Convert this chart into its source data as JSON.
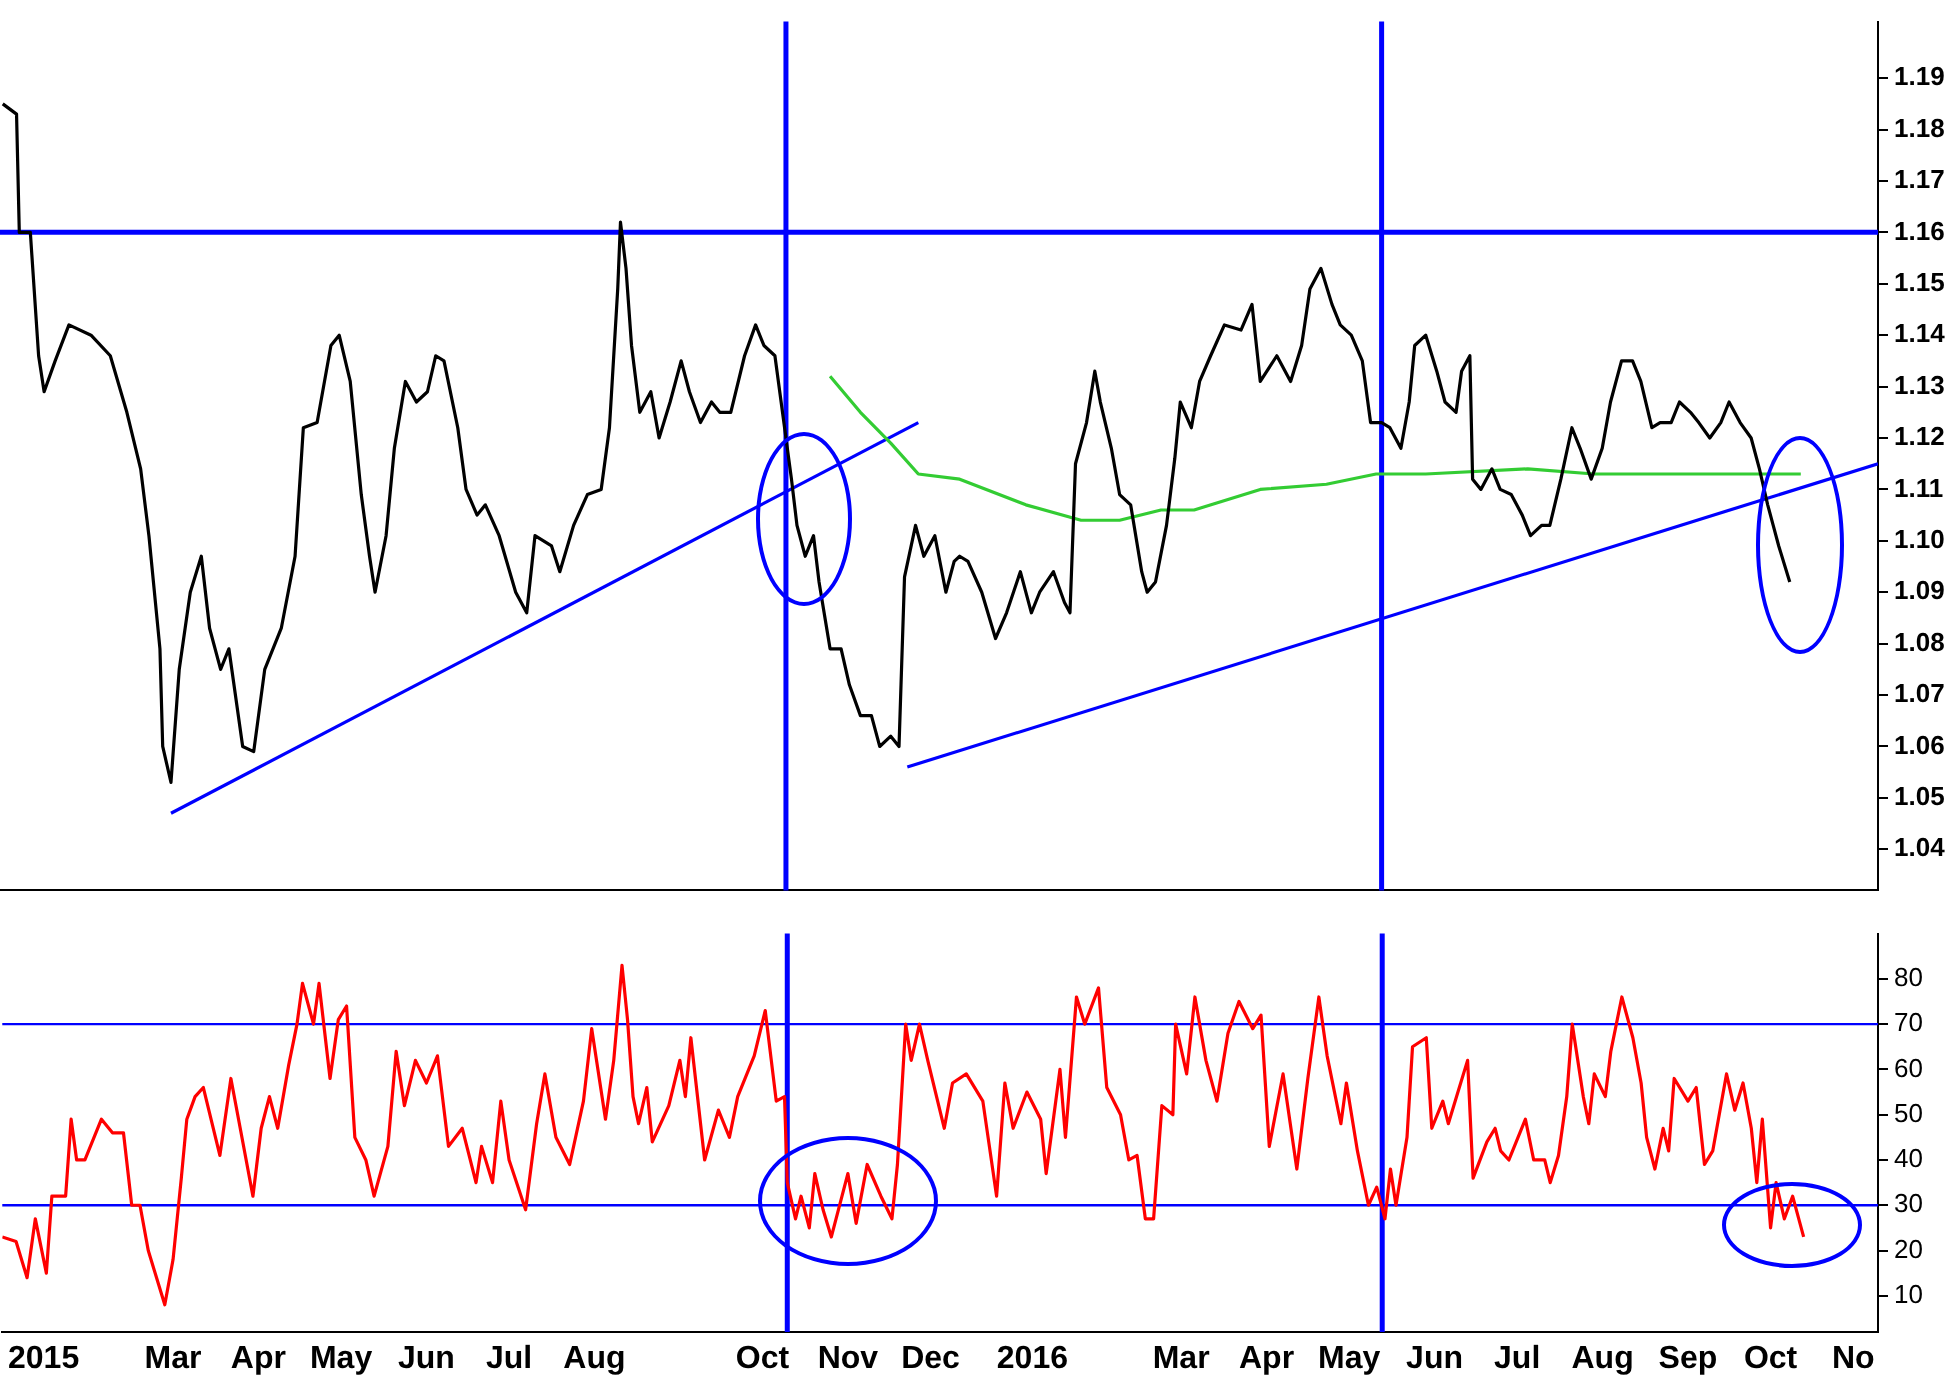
{
  "chart_data": [
    {
      "type": "line",
      "xlim": [
        "2015-01-09",
        "2016-11-20"
      ],
      "ylim": [
        1.032,
        1.201
      ],
      "yticks": [
        1.04,
        1.05,
        1.06,
        1.07,
        1.08,
        1.09,
        {
          "value": 1.1,
          "label": "1.10"
        },
        1.11,
        1.12,
        1.13,
        1.14,
        1.15,
        1.16,
        1.17,
        1.18,
        1.19
      ],
      "tick_labels": "y",
      "series": [
        {
          "color": "#000000",
          "x": [
            "2015-01-10",
            "2015-01-15",
            "2015-01-16",
            "2015-01-20",
            "2015-01-23",
            "2015-01-25",
            "2015-01-29",
            "2015-02-03",
            "2015-02-11",
            "2015-02-18",
            "2015-02-24",
            "2015-03-01",
            "2015-03-04",
            "2015-03-08",
            "2015-03-09",
            "2015-03-12",
            "2015-03-15",
            "2015-03-19",
            "2015-03-23",
            "2015-03-26",
            "2015-03-30",
            "2015-04-02",
            "2015-04-07",
            "2015-04-11",
            "2015-04-15",
            "2015-04-21",
            "2015-04-26",
            "2015-04-29",
            "2015-05-04",
            "2015-05-09",
            "2015-05-12",
            "2015-05-16",
            "2015-05-20",
            "2015-05-23",
            "2015-05-25",
            "2015-05-29",
            "2015-06-01",
            "2015-06-05",
            "2015-06-09",
            "2015-06-13",
            "2015-06-16",
            "2015-06-19",
            "2015-06-24",
            "2015-06-27",
            "2015-07-01",
            "2015-07-04",
            "2015-07-09",
            "2015-07-15",
            "2015-07-19",
            "2015-07-22",
            "2015-07-28",
            "2015-07-31",
            "2015-08-05",
            "2015-08-10",
            "2015-08-15",
            "2015-08-18",
            "2015-08-21",
            "2015-08-22",
            "2015-08-24",
            "2015-08-26",
            "2015-08-29",
            "2015-09-02",
            "2015-09-05",
            "2015-09-09",
            "2015-09-13",
            "2015-09-16",
            "2015-09-20",
            "2015-09-24",
            "2015-09-27",
            "2015-10-01",
            "2015-10-06",
            "2015-10-10",
            "2015-10-13",
            "2015-10-17",
            "2015-10-23",
            "2015-10-25",
            "2015-10-28",
            "2015-10-31",
            "2015-11-02",
            "2015-11-06",
            "2015-11-10",
            "2015-11-13",
            "2015-11-17",
            "2015-11-21",
            "2015-11-24",
            "2015-11-28",
            "2015-12-01",
            "2015-12-03",
            "2015-12-07",
            "2015-12-10",
            "2015-12-14",
            "2015-12-18",
            "2015-12-21",
            "2015-12-23",
            "2015-12-26",
            "2015-12-31",
            "2016-01-05",
            "2016-01-09",
            "2016-01-14",
            "2016-01-18",
            "2016-01-21",
            "2016-01-26",
            "2016-01-30",
            "2016-02-01",
            "2016-02-03",
            "2016-02-07",
            "2016-02-10",
            "2016-02-12",
            "2016-02-16",
            "2016-02-19",
            "2016-02-23",
            "2016-02-27",
            "2016-02-29",
            "2016-03-03",
            "2016-03-07",
            "2016-03-10",
            "2016-03-12",
            "2016-03-16",
            "2016-03-19",
            "2016-03-23",
            "2016-03-28",
            "2016-04-03",
            "2016-04-07",
            "2016-04-10",
            "2016-04-16",
            "2016-04-21",
            "2016-04-25",
            "2016-04-28",
            "2016-05-02",
            "2016-05-06",
            "2016-05-09",
            "2016-05-13",
            "2016-05-17",
            "2016-05-20",
            "2016-05-24",
            "2016-05-27",
            "2016-05-31",
            "2016-06-03",
            "2016-06-05",
            "2016-06-09",
            "2016-06-13",
            "2016-06-16",
            "2016-06-20",
            "2016-06-22",
            "2016-06-25",
            "2016-06-26",
            "2016-06-29",
            "2016-07-03",
            "2016-07-06",
            "2016-07-10",
            "2016-07-14",
            "2016-07-17",
            "2016-07-21",
            "2016-07-24",
            "2016-07-28",
            "2016-08-01",
            "2016-08-04",
            "2016-08-08",
            "2016-08-12",
            "2016-08-15",
            "2016-08-19",
            "2016-08-23",
            "2016-08-26",
            "2016-08-30",
            "2016-09-02",
            "2016-09-06",
            "2016-09-09",
            "2016-09-13",
            "2016-09-16",
            "2016-09-20",
            "2016-09-24",
            "2016-09-27",
            "2016-10-01",
            "2016-10-05",
            "2016-10-08",
            "2016-10-11",
            "2016-10-13",
            "2016-10-15",
            "2016-10-19"
          ],
          "values": [
            1.185,
            1.183,
            1.16,
            1.16,
            1.136,
            1.129,
            1.135,
            1.142,
            1.14,
            1.136,
            1.125,
            1.114,
            1.101,
            1.079,
            1.06,
            1.053,
            1.075,
            1.09,
            1.097,
            1.083,
            1.075,
            1.079,
            1.06,
            1.059,
            1.075,
            1.083,
            1.097,
            1.122,
            1.123,
            1.138,
            1.14,
            1.131,
            1.109,
            1.097,
            1.09,
            1.101,
            1.118,
            1.131,
            1.127,
            1.129,
            1.136,
            1.135,
            1.122,
            1.11,
            1.105,
            1.107,
            1.101,
            1.09,
            1.086,
            1.101,
            1.099,
            1.094,
            1.103,
            1.109,
            1.11,
            1.122,
            1.149,
            1.162,
            1.153,
            1.138,
            1.125,
            1.129,
            1.12,
            1.127,
            1.135,
            1.129,
            1.123,
            1.127,
            1.125,
            1.125,
            1.136,
            1.142,
            1.138,
            1.136,
            1.112,
            1.103,
            1.097,
            1.101,
            1.092,
            1.079,
            1.079,
            1.072,
            1.066,
            1.066,
            1.06,
            1.062,
            1.06,
            1.093,
            1.103,
            1.097,
            1.101,
            1.09,
            1.096,
            1.097,
            1.096,
            1.09,
            1.081,
            1.086,
            1.094,
            1.086,
            1.09,
            1.094,
            1.088,
            1.086,
            1.115,
            1.123,
            1.133,
            1.127,
            1.118,
            1.109,
            1.107,
            1.094,
            1.09,
            1.092,
            1.103,
            1.116,
            1.127,
            1.122,
            1.131,
            1.136,
            1.142,
            1.141,
            1.146,
            1.131,
            1.136,
            1.131,
            1.138,
            1.149,
            1.153,
            1.146,
            1.142,
            1.14,
            1.135,
            1.123,
            1.123,
            1.122,
            1.118,
            1.127,
            1.138,
            1.14,
            1.133,
            1.127,
            1.125,
            1.133,
            1.136,
            1.112,
            1.11,
            1.114,
            1.11,
            1.109,
            1.105,
            1.101,
            1.103,
            1.103,
            1.112,
            1.122,
            1.118,
            1.112,
            1.118,
            1.127,
            1.135,
            1.135,
            1.131,
            1.122,
            1.123,
            1.123,
            1.127,
            1.125,
            1.123,
            1.12,
            1.123,
            1.127,
            1.123,
            1.12,
            1.114,
            1.107,
            1.103,
            1.099,
            1.092
          ]
        },
        {
          "color": "#33cc33",
          "x": [
            "2015-11-06",
            "2015-11-17",
            "2015-11-28",
            "2015-12-08",
            "2015-12-23",
            "2016-01-16",
            "2016-02-05",
            "2016-02-19",
            "2016-03-05",
            "2016-03-17",
            "2016-04-10",
            "2016-05-04",
            "2016-05-22",
            "2016-06-09",
            "2016-07-16",
            "2016-08-09",
            "2016-09-02",
            "2016-10-08",
            "2016-10-23"
          ],
          "values": [
            1.132,
            1.125,
            1.119,
            1.113,
            1.112,
            1.107,
            1.104,
            1.104,
            1.106,
            1.106,
            1.11,
            1.111,
            1.113,
            1.113,
            1.114,
            1.113,
            1.113,
            1.113,
            1.113
          ]
        },
        {
          "color": "#0000ff",
          "x": [
            "2015-03-12",
            "2015-12-08"
          ],
          "values": [
            1.047,
            1.123
          ]
        },
        {
          "color": "#0000ff",
          "x": [
            "2015-12-04",
            "2016-11-20"
          ],
          "values": [
            1.056,
            1.115
          ]
        }
      ],
      "ref_lines": [
        {
          "axis": "y",
          "value": 1.16,
          "color": "#0000ff"
        },
        {
          "axis": "x",
          "value": "2015-10-21",
          "color": "#0000ff"
        },
        {
          "axis": "x",
          "value": "2016-05-24",
          "color": "#0000ff"
        }
      ]
    },
    {
      "type": "line",
      "xlim": [
        "2015-01-09",
        "2016-11-20"
      ],
      "ylim": [
        2,
        90
      ],
      "xticks": [
        {
          "value": "2015-01-24",
          "label": "2015"
        },
        {
          "value": "2015-03-12",
          "label": "Mar"
        },
        {
          "value": "2015-04-12",
          "label": "Apr"
        },
        {
          "value": "2015-05-12",
          "label": "May"
        },
        {
          "value": "2015-06-12",
          "label": "Jun"
        },
        {
          "value": "2015-07-12",
          "label": "Jul"
        },
        {
          "value": "2015-08-12",
          "label": "Aug"
        },
        {
          "value": "2015-10-12",
          "label": "Oct"
        },
        {
          "value": "2015-11-12",
          "label": "Nov"
        },
        {
          "value": "2015-12-12",
          "label": "Dec"
        },
        {
          "value": "2016-01-18",
          "label": "2016"
        },
        {
          "value": "2016-03-12",
          "label": "Mar"
        },
        {
          "value": "2016-04-12",
          "label": "Apr"
        },
        {
          "value": "2016-05-12",
          "label": "May"
        },
        {
          "value": "2016-06-12",
          "label": "Jun"
        },
        {
          "value": "2016-07-12",
          "label": "Jul"
        },
        {
          "value": "2016-08-12",
          "label": "Aug"
        },
        {
          "value": "2016-09-12",
          "label": "Sep"
        },
        {
          "value": "2016-10-12",
          "label": "Oct"
        },
        {
          "value": "2016-11-11",
          "label": "No"
        }
      ],
      "yticks": [
        10,
        20,
        30,
        40,
        50,
        60,
        70,
        80
      ],
      "series": [
        {
          "color": "#ff0000",
          "x": [
            "2015-01-09",
            "2015-01-14",
            "2015-01-18",
            "2015-01-21",
            "2015-01-25",
            "2015-01-27",
            "2015-02-01",
            "2015-02-03",
            "2015-02-05",
            "2015-02-08",
            "2015-02-14",
            "2015-02-18",
            "2015-02-22",
            "2015-02-25",
            "2015-02-28",
            "2015-03-03",
            "2015-03-09",
            "2015-03-12",
            "2015-03-15",
            "2015-03-17",
            "2015-03-20",
            "2015-03-23",
            "2015-03-29",
            "2015-04-02",
            "2015-04-06",
            "2015-04-10",
            "2015-04-13",
            "2015-04-16",
            "2015-04-19",
            "2015-04-23",
            "2015-04-26",
            "2015-04-28",
            "2015-05-02",
            "2015-05-04",
            "2015-05-08",
            "2015-05-11",
            "2015-05-14",
            "2015-05-17",
            "2015-05-21",
            "2015-05-24",
            "2015-05-29",
            "2015-06-01",
            "2015-06-04",
            "2015-06-08",
            "2015-06-12",
            "2015-06-16",
            "2015-06-20",
            "2015-06-25",
            "2015-06-30",
            "2015-07-02",
            "2015-07-06",
            "2015-07-09",
            "2015-07-12",
            "2015-07-18",
            "2015-07-22",
            "2015-07-25",
            "2015-07-29",
            "2015-08-03",
            "2015-08-08",
            "2015-08-11",
            "2015-08-16",
            "2015-08-19",
            "2015-08-22",
            "2015-08-24",
            "2015-08-26",
            "2015-08-28",
            "2015-08-31",
            "2015-09-02",
            "2015-09-08",
            "2015-09-12",
            "2015-09-14",
            "2015-09-16",
            "2015-09-21",
            "2015-09-26",
            "2015-09-30",
            "2015-10-03",
            "2015-10-09",
            "2015-10-13",
            "2015-10-17",
            "2015-10-20",
            "2015-10-21",
            "2015-10-24",
            "2015-10-26",
            "2015-10-29",
            "2015-10-31",
            "2015-11-03",
            "2015-11-06",
            "2015-11-12",
            "2015-11-15",
            "2015-11-19",
            "2015-11-24",
            "2015-11-28",
            "2015-11-30",
            "2015-12-03",
            "2015-12-05",
            "2015-12-08",
            "2015-12-11",
            "2015-12-17",
            "2015-12-20",
            "2015-12-25",
            "2015-12-31",
            "2016-01-05",
            "2016-01-08",
            "2016-01-11",
            "2016-01-16",
            "2016-01-21",
            "2016-01-23",
            "2016-01-28",
            "2016-01-30",
            "2016-02-03",
            "2016-02-06",
            "2016-02-11",
            "2016-02-14",
            "2016-02-19",
            "2016-02-22",
            "2016-02-25",
            "2016-02-28",
            "2016-03-02",
            "2016-03-05",
            "2016-03-09",
            "2016-03-10",
            "2016-03-14",
            "2016-03-17",
            "2016-03-21",
            "2016-03-25",
            "2016-03-29",
            "2016-04-02",
            "2016-04-07",
            "2016-04-10",
            "2016-04-13",
            "2016-04-18",
            "2016-04-23",
            "2016-04-27",
            "2016-05-01",
            "2016-05-04",
            "2016-05-09",
            "2016-05-11",
            "2016-05-15",
            "2016-05-19",
            "2016-05-22",
            "2016-05-25",
            "2016-05-27",
            "2016-05-29",
            "2016-06-02",
            "2016-06-04",
            "2016-06-09",
            "2016-06-11",
            "2016-06-15",
            "2016-06-17",
            "2016-06-20",
            "2016-06-24",
            "2016-06-26",
            "2016-07-01",
            "2016-07-04",
            "2016-07-06",
            "2016-07-09",
            "2016-07-15",
            "2016-07-18",
            "2016-07-22",
            "2016-07-24",
            "2016-07-27",
            "2016-07-30",
            "2016-08-01",
            "2016-08-05",
            "2016-08-07",
            "2016-08-09",
            "2016-08-13",
            "2016-08-15",
            "2016-08-19",
            "2016-08-23",
            "2016-08-26",
            "2016-08-28",
            "2016-08-31",
            "2016-09-03",
            "2016-09-05",
            "2016-09-07",
            "2016-09-12",
            "2016-09-15",
            "2016-09-18",
            "2016-09-21",
            "2016-09-26",
            "2016-09-29",
            "2016-10-02",
            "2016-10-05",
            "2016-10-07",
            "2016-10-09",
            "2016-10-12",
            "2016-10-14",
            "2016-10-17",
            "2016-10-20",
            "2016-10-24"
          ],
          "values": [
            23,
            22,
            14,
            27,
            15,
            32,
            32,
            49,
            40,
            40,
            49,
            46,
            46,
            30,
            30,
            20,
            8,
            18,
            36,
            49,
            54,
            56,
            41,
            58,
            45,
            32,
            47,
            54,
            47,
            61,
            70,
            79,
            70,
            79,
            58,
            71,
            74,
            45,
            40,
            32,
            43,
            64,
            52,
            62,
            57,
            63,
            43,
            47,
            35,
            43,
            35,
            53,
            40,
            29,
            48,
            59,
            45,
            39,
            53,
            69,
            49,
            62,
            83,
            71,
            54,
            48,
            56,
            44,
            52,
            62,
            54,
            67,
            40,
            51,
            45,
            54,
            63,
            73,
            53,
            54,
            35,
            27,
            32,
            25,
            37,
            29,
            23,
            37,
            26,
            39,
            32,
            27,
            39,
            70,
            62,
            70,
            62,
            47,
            57,
            59,
            53,
            32,
            57,
            47,
            55,
            49,
            37,
            60,
            45,
            76,
            70,
            78,
            56,
            50,
            40,
            41,
            27,
            27,
            52,
            50,
            70,
            59,
            76,
            62,
            53,
            68,
            75,
            69,
            72,
            43,
            59,
            38,
            58,
            76,
            63,
            48,
            57,
            42,
            30,
            34,
            27,
            38,
            30,
            45,
            65,
            67,
            47,
            53,
            48,
            54,
            62,
            36,
            44,
            47,
            42,
            40,
            49,
            40,
            40,
            35,
            41,
            54,
            70,
            54,
            48,
            59,
            54,
            64,
            76,
            67,
            57,
            45,
            38,
            47,
            42,
            58,
            53,
            56,
            39,
            42,
            59,
            51,
            57,
            47,
            35,
            49,
            25,
            35,
            27,
            32,
            23
          ]
        }
      ],
      "ref_lines": [
        {
          "axis": "y",
          "value": 70,
          "color": "#0000ff"
        },
        {
          "axis": "y",
          "value": 30,
          "color": "#0000ff"
        },
        {
          "axis": "x",
          "value": "2015-10-21",
          "color": "#0000ff"
        },
        {
          "axis": "x",
          "value": "2016-05-24",
          "color": "#0000ff"
        }
      ]
    }
  ]
}
